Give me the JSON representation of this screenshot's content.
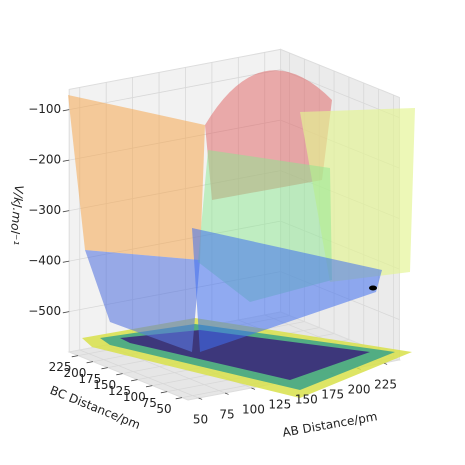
{
  "chart_data": {
    "type": "surface",
    "xlabel": "AB Distance/pm",
    "ylabel": "BC Distance/pm",
    "zlabel": "V/kJ.mol⁻¹",
    "xlim": [
      40,
      240
    ],
    "xticks": [
      50,
      75,
      100,
      125,
      150,
      175,
      200,
      225
    ],
    "ylim": [
      40,
      240
    ],
    "yticks": [
      50,
      75,
      100,
      125,
      150,
      175,
      200,
      225
    ],
    "zlim": [
      -580,
      -60
    ],
    "zticks": [
      {
        "value": -100,
        "label": "−100"
      },
      {
        "value": -200,
        "label": "−200"
      },
      {
        "value": -300,
        "label": "−300"
      },
      {
        "value": -400,
        "label": "−400"
      },
      {
        "value": -500,
        "label": "−500"
      }
    ],
    "grid": true
  }
}
